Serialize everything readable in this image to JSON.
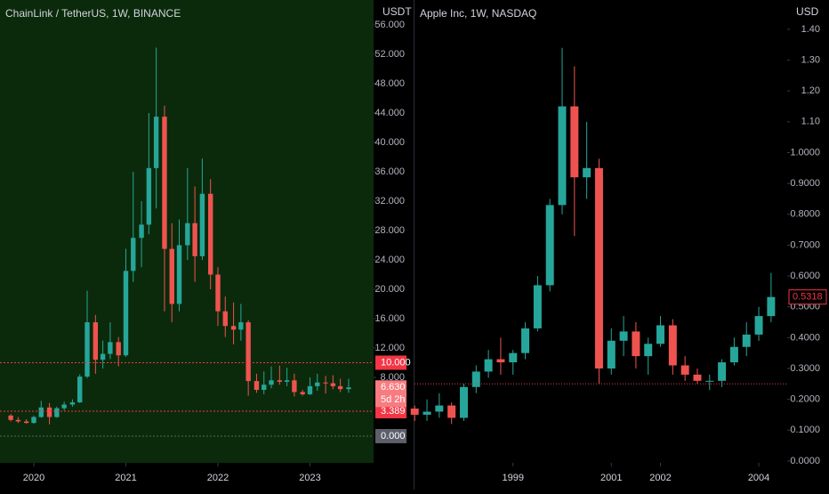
{
  "chart_data": [
    {
      "type": "candlestick",
      "title": "ChainLink / TetherUS, 1W, BINANCE",
      "unit": "USDT",
      "background": "#0b2a0b",
      "up_color": "#26a69a",
      "down_color": "#ef5350",
      "xlim": [
        2019.633,
        2023.691
      ],
      "xticks": [
        2020,
        2021,
        2022,
        2023
      ],
      "ylim": [
        -3.64,
        59.39
      ],
      "yticks": [
        {
          "value": 8,
          "label": "8.000"
        },
        {
          "value": 12,
          "label": "12.000"
        },
        {
          "value": 16,
          "label": "16.000"
        },
        {
          "value": 20,
          "label": "20.000"
        },
        {
          "value": 24,
          "label": "24.000"
        },
        {
          "value": 28,
          "label": "28.000"
        },
        {
          "value": 32,
          "label": "32.000"
        },
        {
          "value": 36,
          "label": "36.000"
        },
        {
          "value": 40,
          "label": "40.000"
        },
        {
          "value": 44,
          "label": "44.000"
        },
        {
          "value": 48,
          "label": "48.000"
        },
        {
          "value": 52,
          "label": "52.000"
        },
        {
          "value": 56,
          "label": "56.000"
        }
      ],
      "t": [
        2019.75,
        2019.83,
        2019.92,
        2020.0,
        2020.08,
        2020.17,
        2020.25,
        2020.33,
        2020.42,
        2020.5,
        2020.58,
        2020.67,
        2020.75,
        2020.83,
        2020.92,
        2021.0,
        2021.08,
        2021.17,
        2021.25,
        2021.33,
        2021.42,
        2021.5,
        2021.58,
        2021.67,
        2021.75,
        2021.83,
        2021.92,
        2022.0,
        2022.08,
        2022.17,
        2022.25,
        2022.33,
        2022.42,
        2022.5,
        2022.58,
        2022.67,
        2022.75,
        2022.83,
        2022.92,
        2023.0,
        2023.08,
        2023.17,
        2023.25,
        2023.33,
        2023.42
      ],
      "open": [
        2.8,
        2.2,
        2.0,
        1.8,
        2.6,
        3.9,
        2.6,
        3.8,
        4.3,
        4.6,
        8.1,
        15.5,
        10.4,
        11.2,
        12.8,
        11.0,
        22.5,
        27.0,
        28.8,
        36.5,
        43.5,
        25.5,
        18.0,
        26.0,
        29.0,
        24.5,
        33.0,
        22.0,
        17.0,
        15.0,
        14.5,
        15.5,
        7.5,
        6.3,
        7.0,
        7.6,
        7.4,
        7.6,
        6.0,
        5.7,
        6.8,
        7.3,
        7.2,
        6.8,
        6.4
      ],
      "high": [
        3.0,
        2.6,
        2.3,
        2.8,
        4.8,
        4.5,
        4.0,
        4.7,
        5.0,
        8.4,
        19.8,
        16.5,
        13.0,
        15.5,
        13.5,
        25.5,
        36.0,
        32.0,
        44.0,
        52.9,
        45.0,
        29.0,
        29.5,
        36.5,
        34.0,
        37.8,
        35.0,
        23.0,
        19.0,
        18.2,
        18.0,
        15.8,
        8.5,
        8.8,
        9.5,
        9.6,
        9.3,
        8.5,
        6.3,
        8.0,
        8.5,
        8.2,
        8.3,
        7.8,
        7.8
      ],
      "low": [
        2.0,
        1.8,
        1.7,
        1.7,
        2.5,
        1.6,
        2.5,
        3.5,
        4.0,
        4.5,
        7.9,
        8.5,
        9.2,
        10.5,
        9.5,
        10.8,
        21.0,
        23.0,
        27.5,
        31.0,
        17.0,
        15.5,
        17.0,
        24.0,
        21.0,
        24.0,
        20.0,
        15.0,
        13.5,
        12.5,
        13.0,
        5.5,
        5.9,
        5.7,
        6.5,
        7.0,
        6.8,
        5.4,
        5.5,
        5.6,
        6.2,
        5.8,
        6.4,
        6.0,
        5.9
      ],
      "close": [
        2.2,
        2.0,
        1.8,
        2.6,
        3.9,
        2.6,
        3.8,
        4.3,
        4.6,
        8.1,
        15.5,
        10.4,
        11.2,
        12.8,
        11.0,
        22.5,
        27.0,
        28.8,
        36.5,
        43.5,
        25.5,
        18.0,
        26.0,
        29.0,
        24.5,
        33.0,
        22.0,
        17.0,
        15.0,
        14.5,
        15.5,
        7.5,
        6.3,
        7.0,
        7.6,
        7.4,
        7.6,
        6.0,
        5.7,
        6.8,
        7.3,
        7.2,
        6.8,
        6.4,
        6.63
      ],
      "price_lines": [
        {
          "value": 10,
          "label": "10.000",
          "color": "#f23645"
        },
        {
          "value": 3.389,
          "label": "3.389",
          "color": "#f23645"
        },
        {
          "value": 0,
          "label": "0.000",
          "color": "#5d606b"
        }
      ],
      "last_price": {
        "value": 6.63,
        "label": "6.630",
        "countdown": "5d 2h",
        "color": "#f77c80"
      }
    },
    {
      "type": "candlestick",
      "title": "Apple Inc, 1W, NASDAQ",
      "unit": "USD",
      "background": "#000000",
      "up_color": "#26a69a",
      "down_color": "#ef5350",
      "xlim": [
        1996.996,
        2004.578
      ],
      "xticks": [
        1999,
        2001,
        2002,
        2004
      ],
      "ylim": [
        -0.006,
        1.495
      ],
      "yticks": [
        {
          "value": 0,
          "label": "0.0000"
        },
        {
          "value": 0.1,
          "label": "0.1000"
        },
        {
          "value": 0.2,
          "label": "0.2000"
        },
        {
          "value": 0.3,
          "label": "0.3000"
        },
        {
          "value": 0.4,
          "label": "0.4000"
        },
        {
          "value": 0.5,
          "label": "0.5000"
        },
        {
          "value": 0.6,
          "label": "0.6000"
        },
        {
          "value": 0.7,
          "label": "0.7000"
        },
        {
          "value": 0.8,
          "label": "0.8000"
        },
        {
          "value": 0.9,
          "label": "0.9000"
        },
        {
          "value": 1.0,
          "label": "1.0000"
        },
        {
          "value": 1.1,
          "label": "1.10"
        },
        {
          "value": 1.2,
          "label": "1.20"
        },
        {
          "value": 1.3,
          "label": "1.30"
        },
        {
          "value": 1.4,
          "label": "1.40"
        }
      ],
      "t": [
        1997.0,
        1997.25,
        1997.5,
        1997.75,
        1998.0,
        1998.25,
        1998.5,
        1998.75,
        1999.0,
        1999.25,
        1999.5,
        1999.75,
        2000.0,
        2000.25,
        2000.5,
        2000.75,
        2001.0,
        2001.25,
        2001.5,
        2001.75,
        2002.0,
        2002.25,
        2002.5,
        2002.75,
        2003.0,
        2003.25,
        2003.5,
        2003.75,
        2004.0,
        2004.25
      ],
      "open": [
        0.17,
        0.15,
        0.16,
        0.18,
        0.14,
        0.24,
        0.29,
        0.33,
        0.32,
        0.35,
        0.43,
        0.57,
        0.83,
        1.15,
        0.92,
        0.95,
        0.3,
        0.39,
        0.42,
        0.34,
        0.38,
        0.44,
        0.31,
        0.28,
        0.26,
        0.26,
        0.32,
        0.37,
        0.41,
        0.47
      ],
      "high": [
        0.18,
        0.2,
        0.22,
        0.19,
        0.25,
        0.31,
        0.36,
        0.4,
        0.36,
        0.45,
        0.6,
        0.85,
        1.34,
        1.28,
        1.1,
        0.98,
        0.43,
        0.47,
        0.45,
        0.4,
        0.47,
        0.46,
        0.34,
        0.3,
        0.28,
        0.33,
        0.4,
        0.45,
        0.5,
        0.61
      ],
      "low": [
        0.13,
        0.13,
        0.14,
        0.12,
        0.13,
        0.22,
        0.27,
        0.28,
        0.28,
        0.33,
        0.42,
        0.55,
        0.8,
        0.73,
        0.85,
        0.25,
        0.28,
        0.34,
        0.3,
        0.28,
        0.37,
        0.28,
        0.26,
        0.25,
        0.23,
        0.24,
        0.31,
        0.34,
        0.39,
        0.45
      ],
      "close": [
        0.15,
        0.16,
        0.18,
        0.14,
        0.24,
        0.29,
        0.33,
        0.32,
        0.35,
        0.43,
        0.57,
        0.83,
        1.15,
        0.92,
        0.95,
        0.3,
        0.39,
        0.42,
        0.34,
        0.38,
        0.44,
        0.31,
        0.28,
        0.26,
        0.26,
        0.32,
        0.37,
        0.41,
        0.47,
        0.5318
      ],
      "price_lines": [
        {
          "value": 0.25,
          "color": "#f23645"
        }
      ],
      "last_price": {
        "value": 0.5318,
        "label": "0.5318",
        "color": "#f23645"
      }
    }
  ]
}
